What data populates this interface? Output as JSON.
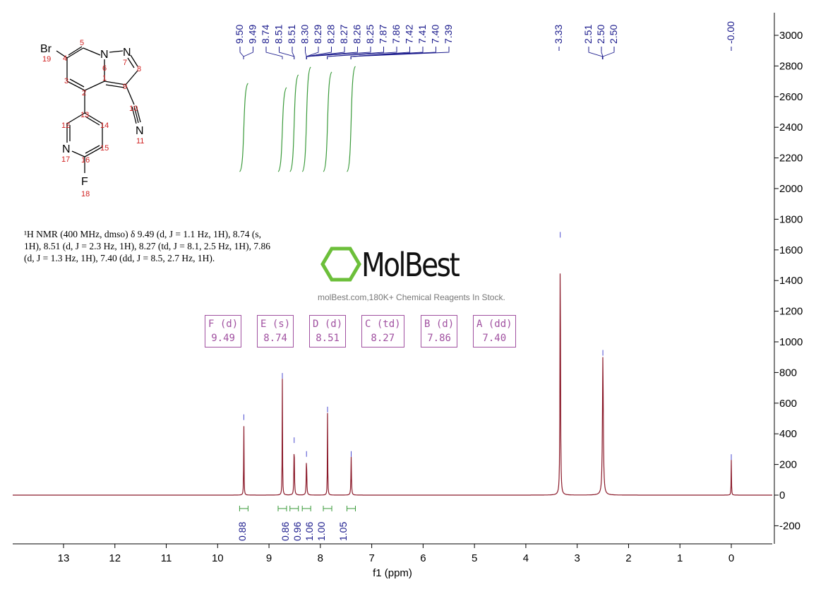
{
  "chart_data": {
    "type": "line",
    "title": "",
    "xlabel": "f1 (ppm)",
    "ylabel": "",
    "xlim": [
      13.95,
      -0.75
    ],
    "ylim": [
      -300,
      3150
    ],
    "x_reversed": true,
    "x_ticks": [
      13,
      12,
      11,
      10,
      9,
      8,
      7,
      6,
      5,
      4,
      3,
      2,
      1,
      0
    ],
    "y_ticks": [
      -200,
      0,
      200,
      400,
      600,
      800,
      1000,
      1200,
      1400,
      1600,
      1800,
      2000,
      2200,
      2400,
      2600,
      2800,
      3000
    ],
    "y_axis_position": "right",
    "grid": false,
    "colors": {
      "spectrum": "#8b1a2a",
      "peak_labels": "#1a1a8c",
      "integrals": "#3a9a3a",
      "multiplet_boxes": "#a050a0",
      "watermark_logo": "#6cbf3a"
    },
    "peaks": [
      {
        "ppm": 9.49,
        "height": 490
      },
      {
        "ppm": 8.74,
        "height": 760
      },
      {
        "ppm": 8.51,
        "height": 340
      },
      {
        "ppm": 8.27,
        "height": 250
      },
      {
        "ppm": 7.86,
        "height": 540
      },
      {
        "ppm": 7.4,
        "height": 250
      },
      {
        "ppm": 3.33,
        "height": 1680
      },
      {
        "ppm": 2.5,
        "height": 910
      },
      {
        "ppm": 0.0,
        "height": 230
      }
    ],
    "peak_labels_group1": [
      "9.50",
      "9.49",
      "8.74",
      "8.51",
      "8.51",
      "8.30",
      "8.29",
      "8.28",
      "8.27",
      "8.26",
      "8.25",
      "7.87",
      "7.86",
      "7.42",
      "7.41",
      "7.40",
      "7.39"
    ],
    "peak_labels_group2": [
      "3.33"
    ],
    "peak_labels_group3": [
      "2.51",
      "2.50",
      "2.50"
    ],
    "peak_labels_group4": [
      "-0.00"
    ],
    "integrals": [
      {
        "ppm": 9.49,
        "value": "0.88"
      },
      {
        "ppm": 8.74,
        "value": "0.86"
      },
      {
        "ppm": 8.51,
        "value": "0.96"
      },
      {
        "ppm": 8.27,
        "value": "1.06"
      },
      {
        "ppm": 7.86,
        "value": "1.00"
      },
      {
        "ppm": 7.4,
        "value": "1.05"
      }
    ],
    "multiplets": [
      {
        "label": "E (s)",
        "shift": "8.74"
      },
      {
        "label": "B (d)",
        "shift": "7.86"
      },
      {
        "label": "F (d)",
        "shift": "9.49"
      },
      {
        "label": "C (td)",
        "shift": "8.27"
      },
      {
        "label": "A (dd)",
        "shift": "7.40"
      },
      {
        "label": "D (d)",
        "shift": "8.51"
      }
    ]
  },
  "description": "¹H NMR (400 MHz, dmso) δ 9.49 (d, J = 1.1 Hz, 1H), 8.74 (s, 1H), 8.51 (d, J = 2.3 Hz, 1H), 8.27 (td, J = 8.1, 2.5 Hz, 1H), 7.86 (d, J = 1.3 Hz, 1H), 7.40 (dd, J = 8.5, 2.7 Hz, 1H).",
  "molecule": {
    "atoms": {
      "br": "Br",
      "n6": "N",
      "n7": "N",
      "n11": "N",
      "n17": "N",
      "f": "F"
    },
    "numbers": [
      "19",
      "4",
      "5",
      "6",
      "1",
      "7",
      "8",
      "9",
      "3",
      "2",
      "10",
      "13",
      "12",
      "14",
      "15",
      "16",
      "17",
      "11",
      "18"
    ]
  },
  "watermark": {
    "brand": "MolBest",
    "tagline": "molBest.com,180K+ Chemical Reagents In Stock."
  }
}
